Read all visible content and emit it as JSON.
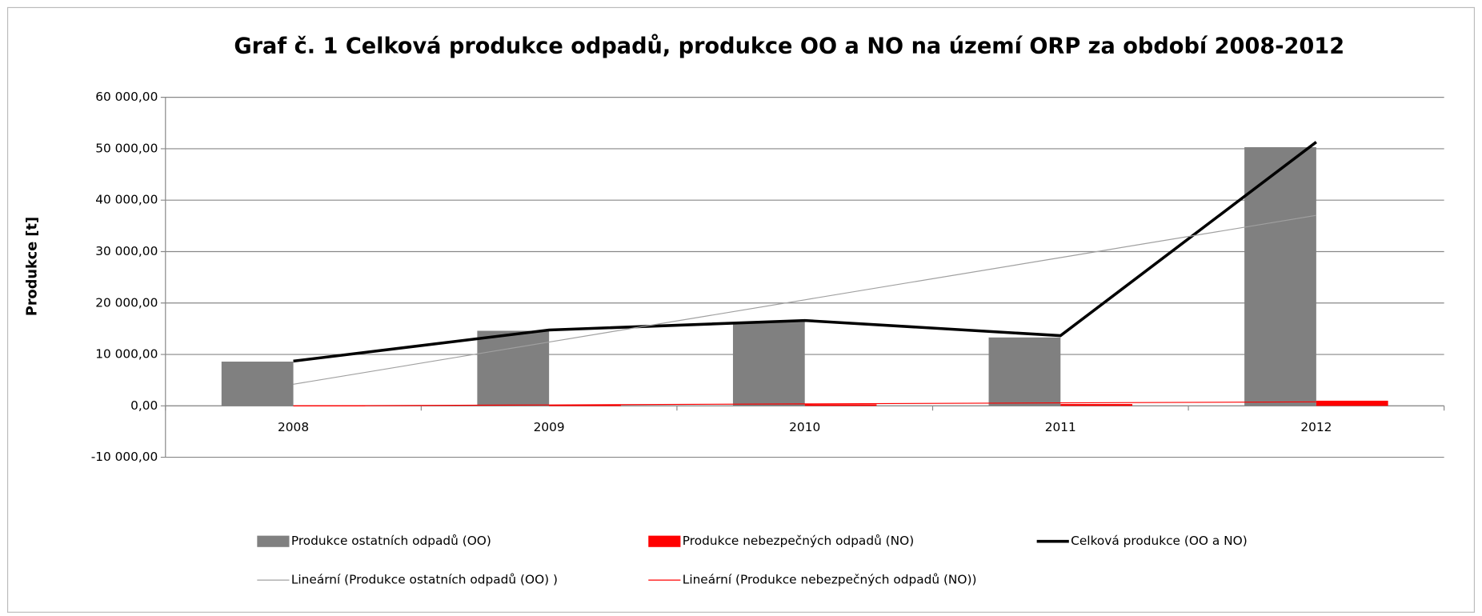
{
  "chart_data": {
    "type": "bar_line",
    "title": "Graf č. 1 Celková produkce odpadů, produkce OO a NO na území ORP za období 2008-2012",
    "y_label": "Produkce [t]",
    "categories": [
      "2008",
      "2009",
      "2010",
      "2011",
      "2012"
    ],
    "ylim": [
      -10000,
      60000
    ],
    "yticks": [
      {
        "value": -10000,
        "label": "-10 000,00"
      },
      {
        "value": 0,
        "label": "0,00"
      },
      {
        "value": 10000,
        "label": "10 000,00"
      },
      {
        "value": 20000,
        "label": "20 000,00"
      },
      {
        "value": 30000,
        "label": "30 000,00"
      },
      {
        "value": 40000,
        "label": "40 000,00"
      },
      {
        "value": 50000,
        "label": "50 000,00"
      },
      {
        "value": 60000,
        "label": "60 000,00"
      }
    ],
    "grid": true,
    "legend": "bottom",
    "series": [
      {
        "name": "Produkce ostatních odpadů (OO)",
        "kind": "bar",
        "color": "#808080",
        "values": [
          8600,
          14600,
          16300,
          13300,
          50300
        ]
      },
      {
        "name": "Produkce nebezpečných odpadů (NO)",
        "kind": "bar",
        "color": "#ff0000",
        "values": [
          100,
          150,
          300,
          350,
          1000
        ]
      },
      {
        "name": "Celková produkce (OO a NO)",
        "kind": "line",
        "color": "#000000",
        "values": [
          8700,
          14750,
          16600,
          13650,
          51300
        ]
      },
      {
        "name": "Lineární (Produkce ostatních odpadů (OO) )",
        "kind": "trend",
        "color": "#a0a0a0",
        "values": [
          4200,
          12410,
          20620,
          28830,
          37040
        ]
      },
      {
        "name": "Lineární (Produkce nebezpečných odpadů (NO))",
        "kind": "trend",
        "color": "#ff0000",
        "values": [
          -20,
          180,
          380,
          580,
          780
        ]
      }
    ]
  }
}
